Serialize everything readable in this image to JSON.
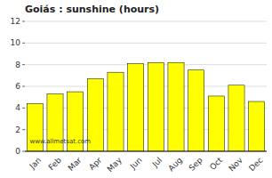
{
  "chart_data": {
    "type": "bar",
    "title": "Goiás : sunshine (hours)",
    "categories": [
      "Jan",
      "Feb",
      "Mar",
      "Apr",
      "May",
      "Jun",
      "Jul",
      "Aug",
      "Sep",
      "Oct",
      "Nov",
      "Dec"
    ],
    "values": [
      4.4,
      5.3,
      5.5,
      6.7,
      7.3,
      8.1,
      8.2,
      8.2,
      7.5,
      5.1,
      6.1,
      4.6
    ],
    "color": "#FFFF00",
    "ylim": [
      0,
      12
    ],
    "yticks": [
      0,
      2,
      4,
      6,
      8,
      10,
      12
    ],
    "grid": true,
    "annotations": [
      "www.allmetsat.com"
    ]
  }
}
